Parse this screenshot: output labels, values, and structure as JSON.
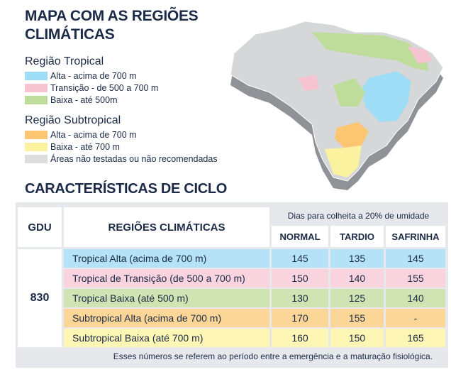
{
  "title": "MAPA COM AS REGIÕES CLIMÁTICAS",
  "legend": [
    {
      "title": "Região Tropical",
      "items": [
        {
          "label": "Alta - acima de 700 m",
          "color": "#9fdcf5"
        },
        {
          "label": "Transição - de 500 a 700 m",
          "color": "#f6c3d0"
        },
        {
          "label": "Baixa - até 500m",
          "color": "#bedc9a"
        }
      ]
    },
    {
      "title": "Região Subtropical",
      "items": [
        {
          "label": "Alta - acima de 700 m",
          "color": "#fbc571"
        },
        {
          "label": "Baixa - até 700 m",
          "color": "#fbf2a0"
        },
        {
          "label": "Áreas não testadas ou não recomendadas",
          "color": "#dcdcdc"
        }
      ]
    }
  ],
  "section_title": "CARACTERÍSTICAS DE CICLO",
  "table": {
    "gdu_header": "GDU",
    "region_header": "REGIÕES CLIMÁTICAS",
    "days_header": "Dias para colheita a 20% de umidade",
    "columns": [
      "NORMAL",
      "TARDIO",
      "SAFRINHA"
    ],
    "gdu_value": "830",
    "rows": [
      {
        "region": "Tropical Alta (acima de 700 m)",
        "color": "#b5e2f6",
        "values": [
          "145",
          "135",
          "145"
        ]
      },
      {
        "region": "Tropical de Transição (de 500 a 700 m)",
        "color": "#f9d3dd",
        "values": [
          "150",
          "140",
          "155"
        ]
      },
      {
        "region": "Tropical Baixa (até 500 m)",
        "color": "#cfe4b2",
        "values": [
          "130",
          "125",
          "140"
        ]
      },
      {
        "region": "Subtropical Alta (acima de 700 m)",
        "color": "#fcd696",
        "values": [
          "170",
          "155",
          "-"
        ]
      },
      {
        "region": "Subtropical Baixa (até 700 m)",
        "color": "#fdf6b4",
        "values": [
          "160",
          "150",
          "165"
        ]
      }
    ],
    "footnote": "Esses números se referem ao período entre a emergência e a maturação fisiológica."
  }
}
